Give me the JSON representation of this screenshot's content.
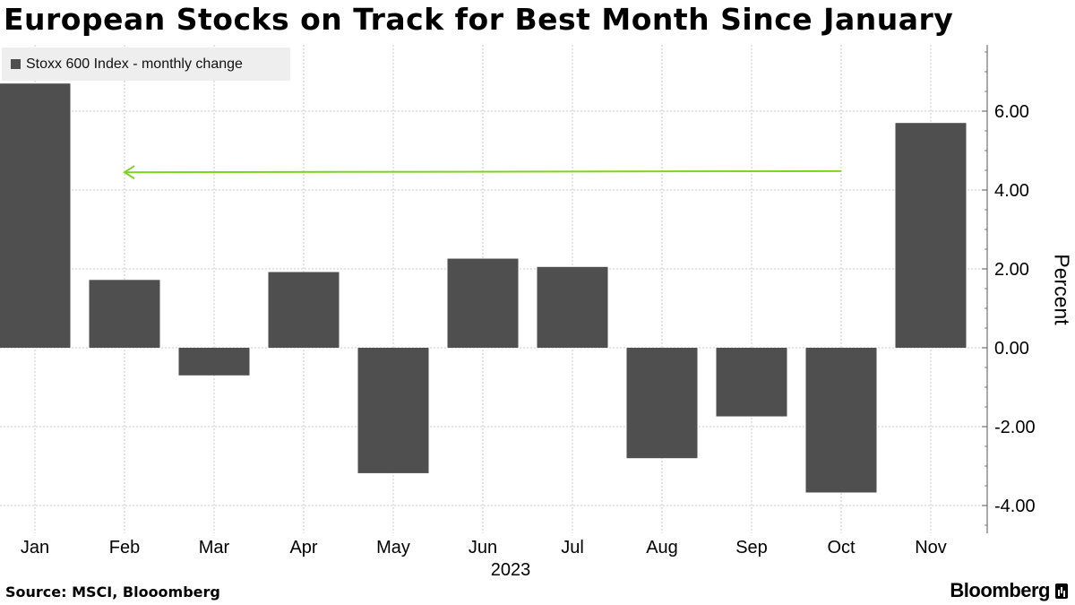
{
  "title": "European Stocks on Track for Best Month Since January",
  "source": "Source: MSCI, Blooomberg",
  "brand": "Bloomberg",
  "brand_icon": "bloomberg-terminal-icon",
  "colors": {
    "bar": "#4f4f4f",
    "arrow": "#7ed321",
    "grid": "#c8c8c8"
  },
  "chart_data": {
    "type": "bar",
    "title": "European Stocks on Track for Best Month Since January",
    "categories": [
      "Jan",
      "Feb",
      "Mar",
      "Apr",
      "May",
      "Jun",
      "Jul",
      "Aug",
      "Sep",
      "Oct",
      "Nov"
    ],
    "x_group_label": "2023",
    "series": [
      {
        "name": "Stoxx 600 Index - monthly change",
        "values": [
          6.7,
          1.72,
          -0.7,
          1.92,
          -3.18,
          2.26,
          2.05,
          -2.8,
          -1.74,
          -3.67,
          5.7
        ]
      }
    ],
    "ylabel": "Percent",
    "ylim": [
      -4.4,
      7.7
    ],
    "yticks": [
      "6.00",
      "4.00",
      "2.00",
      "0.00",
      "-2.00",
      "-4.00"
    ],
    "ytick_values": [
      6,
      4,
      2,
      0,
      -2,
      -4
    ],
    "grid": true,
    "legend_position": "top-left",
    "annotation": {
      "type": "arrow",
      "direction": "left",
      "from_category": "Oct",
      "to_category": "Feb",
      "y_value": 4.48,
      "y_end_value": 4.45
    }
  }
}
